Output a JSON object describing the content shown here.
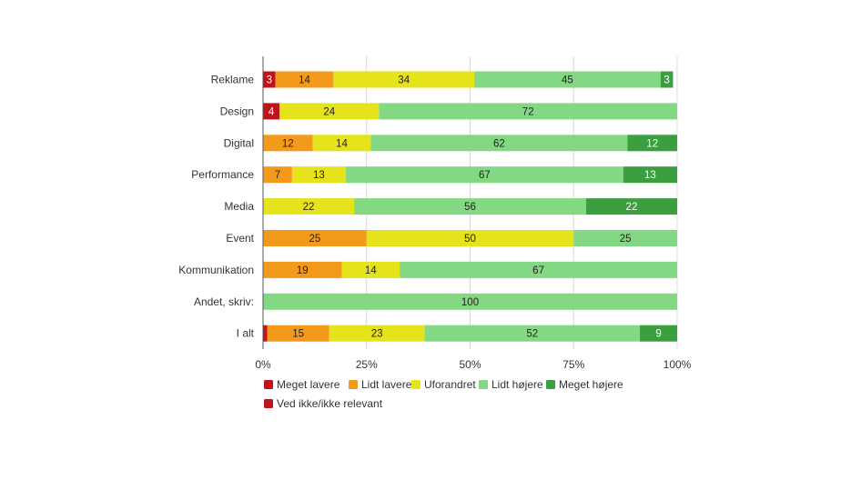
{
  "chart_data": {
    "type": "bar",
    "orientation": "horizontal",
    "stacked": true,
    "percent_stacked": true,
    "categories": [
      "Reklame",
      "Design",
      "Digital",
      "Performance",
      "Media",
      "Event",
      "Kommunikation",
      "Andet, skriv:",
      "I alt"
    ],
    "series": [
      {
        "name": "Meget lavere",
        "color": "#c0141c",
        "text_color": "#ffffff",
        "values": [
          3,
          4,
          0,
          0,
          0,
          0,
          0,
          0,
          1
        ]
      },
      {
        "name": "Lidt lavere",
        "color": "#f39a1d",
        "text_color": "#222222",
        "values": [
          14,
          0,
          12,
          7,
          0,
          25,
          19,
          0,
          15
        ]
      },
      {
        "name": "Uforandret",
        "color": "#e4e31c",
        "text_color": "#222222",
        "values": [
          34,
          24,
          14,
          13,
          22,
          50,
          14,
          0,
          23
        ]
      },
      {
        "name": "Lidt højere",
        "color": "#85d883",
        "text_color": "#222222",
        "values": [
          45,
          72,
          62,
          67,
          56,
          25,
          67,
          100,
          52
        ]
      },
      {
        "name": "Meget højere",
        "color": "#3b9e3f",
        "text_color": "#ffffff",
        "values": [
          3,
          0,
          12,
          13,
          22,
          0,
          0,
          0,
          9
        ]
      },
      {
        "name": "Ved ikke/ikke relevant",
        "color": "#c0141c",
        "text_color": "#ffffff",
        "values": [
          0,
          0,
          0,
          0,
          0,
          0,
          0,
          0,
          0
        ]
      }
    ],
    "x_ticks": [
      "0%",
      "25%",
      "50%",
      "75%",
      "100%"
    ],
    "xlim": [
      0,
      100
    ],
    "title": "",
    "xlabel": "",
    "ylabel": "",
    "grid": true,
    "legend_position": "bottom-left",
    "hidden_data_labels": [
      [],
      [],
      [],
      [],
      [],
      [],
      [],
      [],
      [
        0
      ]
    ]
  }
}
